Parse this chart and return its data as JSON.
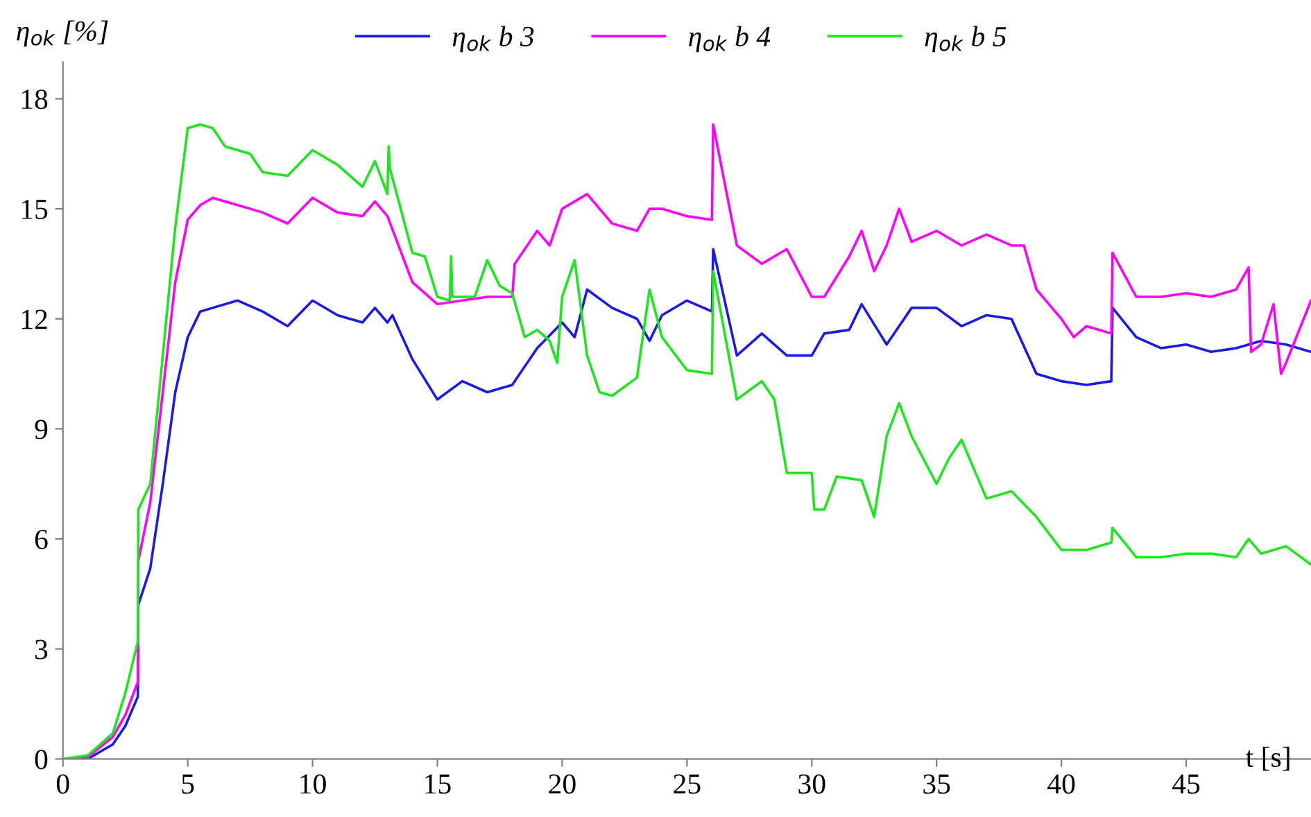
{
  "chart_data": {
    "type": "line",
    "ylabel": "η$_{ok}$ [%]",
    "xlabel": "t [s]",
    "xlim": [
      0,
      50
    ],
    "xticks": [
      0,
      5,
      10,
      15,
      20,
      25,
      30,
      35,
      40,
      45
    ],
    "ylim": [
      0,
      19
    ],
    "yticks": [
      0,
      3,
      6,
      9,
      12,
      15,
      18
    ],
    "grid": false,
    "legend": "top",
    "marker": "none",
    "line_style": "solid",
    "series": [
      {
        "name": "η$_{ok}$ b 3",
        "color": "#1a1ae6",
        "x": [
          0,
          1,
          1.5,
          2,
          2.5,
          3,
          3.02,
          3.5,
          4,
          4.5,
          5,
          5.5,
          6,
          7,
          8,
          9,
          10,
          11,
          12,
          12.5,
          13,
          13.2,
          14,
          15,
          16,
          17,
          18,
          19,
          20,
          20.5,
          21,
          22,
          23,
          23.5,
          24,
          25,
          26,
          26.05,
          27,
          28,
          29,
          30,
          30.5,
          31.5,
          32,
          33,
          34,
          35,
          36,
          37,
          38,
          39,
          40,
          41,
          42,
          42.05,
          43,
          44,
          45,
          46,
          47,
          48,
          49,
          50
        ],
        "values": [
          0,
          0,
          0.2,
          0.4,
          0.9,
          1.7,
          4.2,
          5.2,
          7.5,
          10,
          11.5,
          12.2,
          12.3,
          12.5,
          12.2,
          11.8,
          12.5,
          12.1,
          11.9,
          12.3,
          11.9,
          12.1,
          10.9,
          9.8,
          10.3,
          10.0,
          10.2,
          11.2,
          11.9,
          11.5,
          12.8,
          12.3,
          12.0,
          11.4,
          12.1,
          12.5,
          12.2,
          13.9,
          11.0,
          11.6,
          11.0,
          11.0,
          11.6,
          11.7,
          12.4,
          11.3,
          12.3,
          12.3,
          11.8,
          12.1,
          12.0,
          10.5,
          10.3,
          10.2,
          10.3,
          12.3,
          11.5,
          11.2,
          11.3,
          11.1,
          11.2,
          11.4,
          11.3,
          11.1
        ]
      },
      {
        "name": "η$_{ok}$ b 4",
        "color": "#ff00ff",
        "x": [
          0,
          1,
          2,
          2.5,
          3,
          3.02,
          3.5,
          4,
          4.5,
          5,
          5.5,
          6,
          7,
          8,
          9,
          10,
          11,
          12,
          12.5,
          13,
          14,
          15,
          16,
          17,
          18,
          18.1,
          19,
          19.5,
          20,
          21,
          22,
          23,
          23.5,
          24,
          25,
          26,
          26.05,
          27,
          28,
          29,
          30,
          30.5,
          31.5,
          32,
          32.5,
          33,
          33.5,
          34,
          35,
          36,
          37,
          38,
          38.5,
          39,
          40,
          40.5,
          41,
          42,
          42.05,
          43,
          44,
          45,
          46,
          47,
          47.5,
          47.6,
          48,
          48.5,
          48.8,
          49,
          50
        ],
        "values": [
          0,
          0.05,
          0.6,
          1.2,
          2.1,
          5.4,
          7,
          10,
          13,
          14.7,
          15.1,
          15.3,
          15.1,
          14.9,
          14.6,
          15.3,
          14.9,
          14.8,
          15.2,
          14.8,
          13.0,
          12.4,
          12.5,
          12.6,
          12.6,
          13.5,
          14.4,
          14.0,
          15.0,
          15.4,
          14.6,
          14.4,
          15.0,
          15.0,
          14.8,
          14.7,
          17.3,
          14.0,
          13.5,
          13.9,
          12.6,
          12.6,
          13.7,
          14.4,
          13.3,
          14.0,
          15.0,
          14.1,
          14.4,
          14.0,
          14.3,
          14.0,
          14.0,
          12.8,
          12.0,
          11.5,
          11.8,
          11.6,
          13.8,
          12.6,
          12.6,
          12.7,
          12.6,
          12.8,
          13.4,
          11.1,
          11.3,
          12.4,
          10.5,
          10.8,
          12.5
        ]
      },
      {
        "name": "η$_{ok}$ b 5",
        "color": "#1ee61e",
        "x": [
          0,
          0.5,
          1,
          1.5,
          2,
          2.5,
          3,
          3.02,
          3.5,
          4,
          4.5,
          5,
          5.5,
          6,
          6.5,
          7,
          7.5,
          8,
          9,
          10,
          11,
          12,
          12.5,
          13,
          13.05,
          13.1,
          14,
          14.5,
          15,
          15.5,
          15.55,
          15.6,
          16.5,
          17,
          17.5,
          18,
          18.5,
          19,
          19.5,
          19.8,
          20,
          20.5,
          21,
          21.5,
          22,
          23,
          23.5,
          24,
          25,
          26,
          26.05,
          27,
          28,
          28.5,
          29,
          30,
          30.1,
          30.5,
          31,
          32,
          32.5,
          33,
          33.5,
          34,
          35,
          35.5,
          36,
          37,
          38,
          39,
          40,
          41,
          42,
          42.05,
          43,
          44,
          45,
          46,
          47,
          47.5,
          48,
          49,
          50
        ],
        "values": [
          0,
          0.05,
          0.1,
          0.4,
          0.7,
          1.8,
          3.2,
          6.8,
          7.5,
          11,
          14.5,
          17.2,
          17.3,
          17.2,
          16.7,
          16.6,
          16.5,
          16,
          15.9,
          16.6,
          16.2,
          15.6,
          16.3,
          15.4,
          16.7,
          16.1,
          13.8,
          13.7,
          12.6,
          12.5,
          13.7,
          12.6,
          12.6,
          13.6,
          12.9,
          12.7,
          11.5,
          11.7,
          11.4,
          10.8,
          12.6,
          13.6,
          11.0,
          10.0,
          9.9,
          10.4,
          12.8,
          11.5,
          10.6,
          10.5,
          13.3,
          9.8,
          10.3,
          9.8,
          7.8,
          7.8,
          6.8,
          6.8,
          7.7,
          7.6,
          6.6,
          8.8,
          9.7,
          8.8,
          7.5,
          8.2,
          8.7,
          7.1,
          7.3,
          6.6,
          5.7,
          5.7,
          5.9,
          6.3,
          5.5,
          5.5,
          5.6,
          5.6,
          5.5,
          6.0,
          5.6,
          5.8,
          5.3
        ]
      }
    ]
  }
}
